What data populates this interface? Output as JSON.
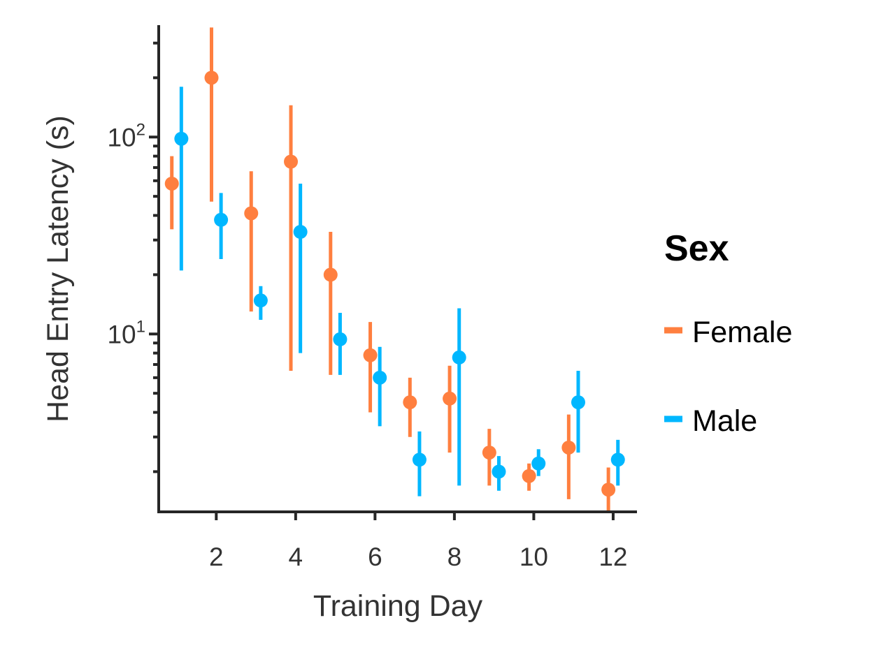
{
  "chart_data": {
    "type": "scatter",
    "xlabel": "Training Day",
    "ylabel": "Head Entry Latency (s)",
    "y_scale": "log",
    "x_ticks": [
      2,
      4,
      6,
      8,
      10,
      12
    ],
    "y_tick_labels": [
      {
        "value": 10,
        "base": "10",
        "exp": "1"
      },
      {
        "value": 100,
        "base": "10",
        "exp": "2"
      }
    ],
    "xlim": [
      0.55,
      12.6
    ],
    "ylim": [
      1.25,
      370
    ],
    "legend": {
      "title": "Sex",
      "position": "right"
    },
    "series": [
      {
        "name": "Female",
        "color": "#ff7f3f",
        "points": [
          {
            "x": 1,
            "y": 58,
            "lo": 34,
            "hi": 80
          },
          {
            "x": 2,
            "y": 200,
            "lo": 47,
            "hi": 360
          },
          {
            "x": 3,
            "y": 41,
            "lo": 13,
            "hi": 67
          },
          {
            "x": 4,
            "y": 75,
            "lo": 6.5,
            "hi": 145
          },
          {
            "x": 5,
            "y": 20,
            "lo": 6.2,
            "hi": 33
          },
          {
            "x": 6,
            "y": 7.8,
            "lo": 4.0,
            "hi": 11.5
          },
          {
            "x": 7,
            "y": 4.5,
            "lo": 3.0,
            "hi": 6.0
          },
          {
            "x": 8,
            "y": 4.7,
            "lo": 2.5,
            "hi": 6.9
          },
          {
            "x": 9,
            "y": 2.5,
            "lo": 1.7,
            "hi": 3.3
          },
          {
            "x": 10,
            "y": 1.9,
            "lo": 1.6,
            "hi": 2.2
          },
          {
            "x": 11,
            "y": 2.65,
            "lo": 1.45,
            "hi": 3.9
          },
          {
            "x": 12,
            "y": 1.62,
            "lo": 1.25,
            "hi": 2.1
          }
        ]
      },
      {
        "name": "Male",
        "color": "#00b7ff",
        "points": [
          {
            "x": 1,
            "y": 98,
            "lo": 21,
            "hi": 180
          },
          {
            "x": 2,
            "y": 38,
            "lo": 24,
            "hi": 52
          },
          {
            "x": 3,
            "y": 14.8,
            "lo": 11.8,
            "hi": 17.5
          },
          {
            "x": 4,
            "y": 33,
            "lo": 8.0,
            "hi": 58
          },
          {
            "x": 5,
            "y": 9.4,
            "lo": 6.2,
            "hi": 12.8
          },
          {
            "x": 6,
            "y": 6.0,
            "lo": 3.4,
            "hi": 8.6
          },
          {
            "x": 7,
            "y": 2.3,
            "lo": 1.5,
            "hi": 3.2
          },
          {
            "x": 8,
            "y": 7.6,
            "lo": 1.7,
            "hi": 13.5
          },
          {
            "x": 9,
            "y": 2.0,
            "lo": 1.6,
            "hi": 2.4
          },
          {
            "x": 10,
            "y": 2.2,
            "lo": 1.9,
            "hi": 2.6
          },
          {
            "x": 11,
            "y": 4.5,
            "lo": 2.5,
            "hi": 6.5
          },
          {
            "x": 12,
            "y": 2.3,
            "lo": 1.7,
            "hi": 2.9
          }
        ]
      }
    ]
  }
}
